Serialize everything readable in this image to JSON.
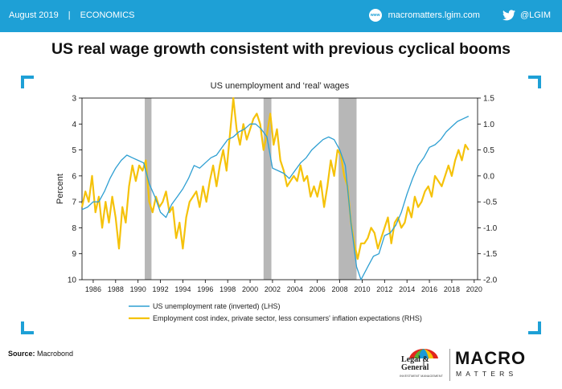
{
  "header": {
    "date": "August 2019",
    "separator": "|",
    "section": "ECONOMICS",
    "site": "macromatters.lgim.com",
    "site_icon": "www-icon",
    "social_icon": "twitter-icon",
    "twitter": "@LGIM"
  },
  "title": "US real wage growth consistent with previous cyclical booms",
  "chart_data": {
    "type": "line",
    "title": "US unemployment  and ‘real’ wages",
    "ylabel_left": "Percent",
    "ylabel_right": "",
    "x_ticks": [
      "1986",
      "1988",
      "1990",
      "1992",
      "1994",
      "1996",
      "1998",
      "2000",
      "2002",
      "2004",
      "2006",
      "2008",
      "2010",
      "2012",
      "2014",
      "2016",
      "2018",
      "2020"
    ],
    "xlim": [
      1985.0,
      2020.3
    ],
    "y_left_ticks": [
      "3",
      "4",
      "5",
      "6",
      "7",
      "8",
      "9",
      "10"
    ],
    "y_left_range": [
      3,
      10
    ],
    "y_left_inverted": true,
    "y_right_ticks": [
      "1.5",
      "1.0",
      "0.5",
      "0.0",
      "-0.5",
      "-1.0",
      "-1.5",
      "-2.0"
    ],
    "y_right_range": [
      -2.0,
      1.5
    ],
    "recessions": [
      [
        1990.6,
        1991.2
      ],
      [
        2001.2,
        2001.9
      ],
      [
        2007.9,
        2009.5
      ]
    ],
    "series": [
      {
        "name": "US unemployment rate (inverted) (LHS)",
        "axis": "left",
        "color": "#2e9fd2",
        "x": [
          1985.0,
          1985.5,
          1986.0,
          1986.5,
          1987.0,
          1987.5,
          1988.0,
          1988.5,
          1989.0,
          1989.5,
          1990.0,
          1990.5,
          1991.0,
          1991.5,
          1992.0,
          1992.5,
          1993.0,
          1993.5,
          1994.0,
          1994.5,
          1995.0,
          1995.5,
          1996.0,
          1996.5,
          1997.0,
          1997.5,
          1998.0,
          1998.5,
          1999.0,
          1999.5,
          2000.0,
          2000.5,
          2001.0,
          2001.5,
          2002.0,
          2002.5,
          2003.0,
          2003.5,
          2004.0,
          2004.5,
          2005.0,
          2005.5,
          2006.0,
          2006.5,
          2007.0,
          2007.5,
          2008.0,
          2008.5,
          2009.0,
          2009.5,
          2009.9,
          2010.5,
          2011.0,
          2011.5,
          2012.0,
          2012.5,
          2013.0,
          2013.5,
          2014.0,
          2014.5,
          2015.0,
          2015.5,
          2016.0,
          2016.5,
          2017.0,
          2017.5,
          2018.0,
          2018.5,
          2019.0,
          2019.5
        ],
        "values": [
          7.3,
          7.2,
          7.0,
          7.0,
          6.6,
          6.1,
          5.7,
          5.4,
          5.2,
          5.3,
          5.4,
          5.5,
          6.3,
          6.8,
          7.4,
          7.6,
          7.1,
          6.8,
          6.5,
          6.1,
          5.6,
          5.7,
          5.5,
          5.3,
          5.2,
          4.9,
          4.6,
          4.5,
          4.3,
          4.2,
          4.0,
          4.0,
          4.2,
          4.5,
          5.7,
          5.8,
          5.9,
          6.1,
          5.8,
          5.5,
          5.3,
          5.0,
          4.8,
          4.6,
          4.5,
          4.6,
          5.0,
          5.6,
          7.8,
          9.5,
          10.0,
          9.5,
          9.1,
          9.0,
          8.3,
          8.2,
          7.9,
          7.4,
          6.7,
          6.1,
          5.6,
          5.3,
          4.9,
          4.8,
          4.6,
          4.3,
          4.1,
          3.9,
          3.8,
          3.7
        ]
      },
      {
        "name": "Employment cost index, private sector, less consumers' inflation expectations (RHS)",
        "axis": "right",
        "color": "#f5c20a",
        "x": [
          1985.0,
          1985.3,
          1985.6,
          1985.9,
          1986.2,
          1986.5,
          1986.8,
          1987.1,
          1987.4,
          1987.7,
          1988.0,
          1988.3,
          1988.6,
          1988.9,
          1989.2,
          1989.5,
          1989.8,
          1990.1,
          1990.4,
          1990.7,
          1991.0,
          1991.3,
          1991.6,
          1991.9,
          1992.2,
          1992.5,
          1992.8,
          1993.1,
          1993.4,
          1993.7,
          1994.0,
          1994.3,
          1994.6,
          1994.9,
          1995.2,
          1995.5,
          1995.8,
          1996.1,
          1996.4,
          1996.7,
          1997.0,
          1997.3,
          1997.6,
          1997.9,
          1998.2,
          1998.5,
          1998.8,
          1999.1,
          1999.4,
          1999.7,
          2000.0,
          2000.3,
          2000.6,
          2000.9,
          2001.2,
          2001.5,
          2001.8,
          2002.1,
          2002.4,
          2002.7,
          2003.0,
          2003.3,
          2003.6,
          2003.9,
          2004.2,
          2004.5,
          2004.8,
          2005.1,
          2005.4,
          2005.7,
          2006.0,
          2006.3,
          2006.6,
          2006.9,
          2007.2,
          2007.5,
          2007.8,
          2008.1,
          2008.4,
          2008.7,
          2009.0,
          2009.3,
          2009.6,
          2009.9,
          2010.2,
          2010.5,
          2010.8,
          2011.1,
          2011.4,
          2011.7,
          2012.0,
          2012.3,
          2012.6,
          2012.9,
          2013.2,
          2013.5,
          2013.8,
          2014.1,
          2014.4,
          2014.7,
          2015.0,
          2015.3,
          2015.6,
          2015.9,
          2016.2,
          2016.5,
          2016.8,
          2017.1,
          2017.4,
          2017.7,
          2018.0,
          2018.3,
          2018.6,
          2018.9,
          2019.2,
          2019.5
        ],
        "values": [
          -0.6,
          -0.3,
          -0.5,
          0.0,
          -0.7,
          -0.4,
          -1.0,
          -0.5,
          -0.9,
          -0.4,
          -0.8,
          -1.4,
          -0.6,
          -0.9,
          -0.2,
          0.2,
          -0.1,
          0.2,
          0.1,
          0.3,
          -0.5,
          -0.7,
          -0.4,
          -0.6,
          -0.5,
          -0.3,
          -0.7,
          -0.6,
          -1.2,
          -0.9,
          -1.4,
          -0.8,
          -0.5,
          -0.4,
          -0.3,
          -0.6,
          -0.2,
          -0.5,
          -0.1,
          0.2,
          -0.2,
          0.2,
          0.5,
          0.1,
          0.8,
          1.5,
          0.9,
          0.6,
          1.0,
          0.7,
          0.9,
          1.1,
          1.2,
          1.0,
          0.5,
          0.8,
          1.2,
          0.6,
          0.9,
          0.3,
          0.1,
          -0.2,
          -0.1,
          0.0,
          -0.1,
          0.2,
          -0.1,
          0.0,
          -0.4,
          -0.2,
          -0.4,
          -0.1,
          -0.6,
          -0.2,
          0.3,
          0.0,
          0.5,
          0.4,
          0.0,
          -0.2,
          -0.9,
          -1.3,
          -1.6,
          -1.3,
          -1.3,
          -1.2,
          -1.0,
          -1.1,
          -1.4,
          -1.2,
          -1.0,
          -0.8,
          -1.3,
          -0.9,
          -0.8,
          -1.0,
          -0.9,
          -0.6,
          -0.8,
          -0.4,
          -0.6,
          -0.5,
          -0.3,
          -0.2,
          -0.4,
          0.0,
          -0.1,
          -0.2,
          0.0,
          0.2,
          0.0,
          0.3,
          0.5,
          0.3,
          0.6,
          0.5
        ]
      }
    ]
  },
  "source": {
    "label": "Source:",
    "text": "Macrobond"
  },
  "footer": {
    "lg_line1": "Legal &",
    "lg_line2": "General",
    "lg_sub": "INVESTMENT MANAGEMENT",
    "brand_main": "MACRO",
    "brand_sub": "MATTERS"
  }
}
